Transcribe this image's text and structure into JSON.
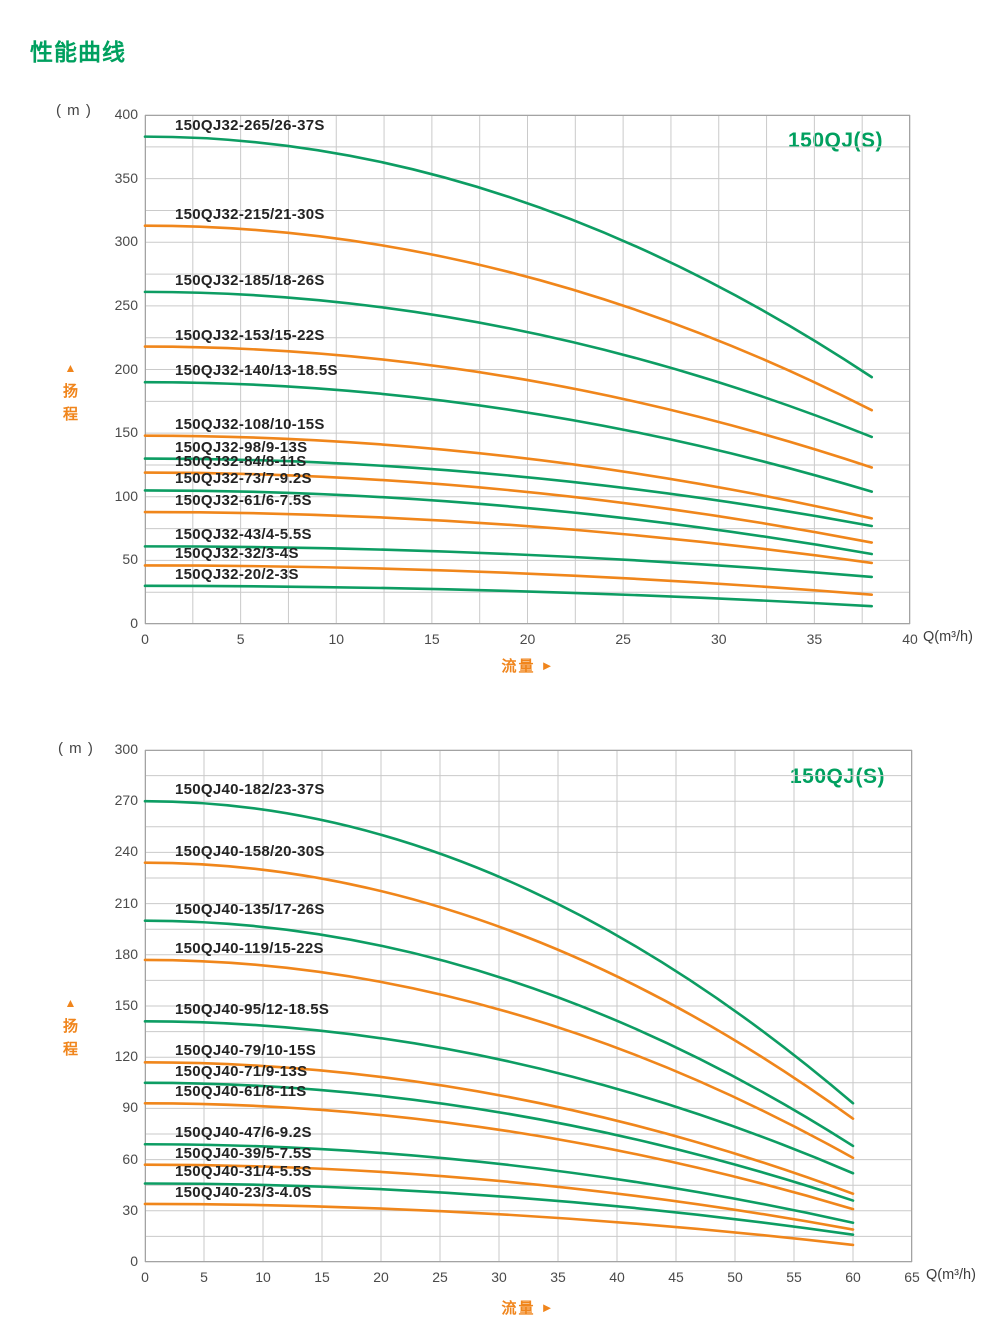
{
  "chart_data": {
    "page_title": "性能曲线",
    "icons": {
      "up_arrow": "▲",
      "right_arrow": "►"
    },
    "colors": {
      "green": "#0d9d63",
      "orange": "#f0861b",
      "grid": "#cacaca",
      "border": "#a3a3a3",
      "label": "#232323",
      "tick": "#4a4a4a",
      "accent_green": "#00a05f",
      "accent_orange": "#f0851c"
    },
    "charts": [
      {
        "type": "line",
        "series_title": "150QJ(S)",
        "y_unit": "( m )",
        "x_unit": "Q(m³/h)",
        "head_label": "扬程",
        "flow_label": "流量",
        "x_axis": {
          "min": 0,
          "max": 40,
          "grid_step": 2.5,
          "ticks": [
            0,
            5,
            10,
            15,
            20,
            25,
            30,
            35,
            40
          ]
        },
        "y_axis": {
          "min": 0,
          "max": 400,
          "grid_step": 25,
          "ticks": [
            0,
            50,
            100,
            150,
            200,
            250,
            300,
            350,
            400
          ]
        },
        "flow_end": 38,
        "series": [
          {
            "label": "150QJ32-265/26-37S",
            "color": "green",
            "shutoff_head_m": 383,
            "head_at_max_flow_m": 194
          },
          {
            "label": "150QJ32-215/21-30S",
            "color": "orange",
            "shutoff_head_m": 313,
            "head_at_max_flow_m": 168
          },
          {
            "label": "150QJ32-185/18-26S",
            "color": "green",
            "shutoff_head_m": 261,
            "head_at_max_flow_m": 147
          },
          {
            "label": "150QJ32-153/15-22S",
            "color": "orange",
            "shutoff_head_m": 218,
            "head_at_max_flow_m": 123
          },
          {
            "label": "150QJ32-140/13-18.5S",
            "color": "green",
            "shutoff_head_m": 190,
            "head_at_max_flow_m": 104
          },
          {
            "label": "150QJ32-108/10-15S",
            "color": "orange",
            "shutoff_head_m": 148,
            "head_at_max_flow_m": 83
          },
          {
            "label": "150QJ32-98/9-13S",
            "color": "green",
            "shutoff_head_m": 130,
            "head_at_max_flow_m": 77
          },
          {
            "label": "150QJ32-84/8-11S",
            "color": "orange",
            "shutoff_head_m": 119,
            "head_at_max_flow_m": 64
          },
          {
            "label": "150QJ32-73/7-9.2S",
            "color": "green",
            "shutoff_head_m": 105,
            "head_at_max_flow_m": 55
          },
          {
            "label": "150QJ32-61/6-7.5S",
            "color": "orange",
            "shutoff_head_m": 88,
            "head_at_max_flow_m": 48
          },
          {
            "label": "150QJ32-43/4-5.5S",
            "color": "green",
            "shutoff_head_m": 61,
            "head_at_max_flow_m": 37
          },
          {
            "label": "150QJ32-32/3-4S",
            "color": "orange",
            "shutoff_head_m": 46,
            "head_at_max_flow_m": 23
          },
          {
            "label": "150QJ32-20/2-3S",
            "color": "green",
            "shutoff_head_m": 30,
            "head_at_max_flow_m": 14
          }
        ]
      },
      {
        "type": "line",
        "series_title": "150QJ(S)",
        "y_unit": "( m )",
        "x_unit": "Q(m³/h)",
        "head_label": "扬程",
        "flow_label": "流量",
        "x_axis": {
          "min": 0,
          "max": 65,
          "grid_step": 5,
          "ticks": [
            0,
            5,
            10,
            15,
            20,
            25,
            30,
            35,
            40,
            45,
            50,
            55,
            60,
            65
          ]
        },
        "y_axis": {
          "min": 0,
          "max": 300,
          "grid_step": 15,
          "ticks": [
            0,
            30,
            60,
            90,
            120,
            150,
            180,
            210,
            240,
            270,
            300
          ]
        },
        "flow_end": 60,
        "series": [
          {
            "label": "150QJ40-182/23-37S",
            "color": "green",
            "shutoff_head_m": 270,
            "head_at_max_flow_m": 93
          },
          {
            "label": "150QJ40-158/20-30S",
            "color": "orange",
            "shutoff_head_m": 234,
            "head_at_max_flow_m": 84
          },
          {
            "label": "150QJ40-135/17-26S",
            "color": "green",
            "shutoff_head_m": 200,
            "head_at_max_flow_m": 68
          },
          {
            "label": "150QJ40-119/15-22S",
            "color": "orange",
            "shutoff_head_m": 177,
            "head_at_max_flow_m": 61
          },
          {
            "label": "150QJ40-95/12-18.5S",
            "color": "green",
            "shutoff_head_m": 141,
            "head_at_max_flow_m": 52
          },
          {
            "label": "150QJ40-79/10-15S",
            "color": "orange",
            "shutoff_head_m": 117,
            "head_at_max_flow_m": 40
          },
          {
            "label": "150QJ40-71/9-13S",
            "color": "green",
            "shutoff_head_m": 105,
            "head_at_max_flow_m": 36
          },
          {
            "label": "150QJ40-61/8-11S",
            "color": "orange",
            "shutoff_head_m": 93,
            "head_at_max_flow_m": 31
          },
          {
            "label": "150QJ40-47/6-9.2S",
            "color": "green",
            "shutoff_head_m": 69,
            "head_at_max_flow_m": 23
          },
          {
            "label": "150QJ40-39/5-7.5S",
            "color": "orange",
            "shutoff_head_m": 57,
            "head_at_max_flow_m": 19
          },
          {
            "label": "150QJ40-31/4-5.5S",
            "color": "green",
            "shutoff_head_m": 46,
            "head_at_max_flow_m": 16
          },
          {
            "label": "150QJ40-23/3-4.0S",
            "color": "orange",
            "shutoff_head_m": 34,
            "head_at_max_flow_m": 10
          }
        ]
      }
    ]
  }
}
